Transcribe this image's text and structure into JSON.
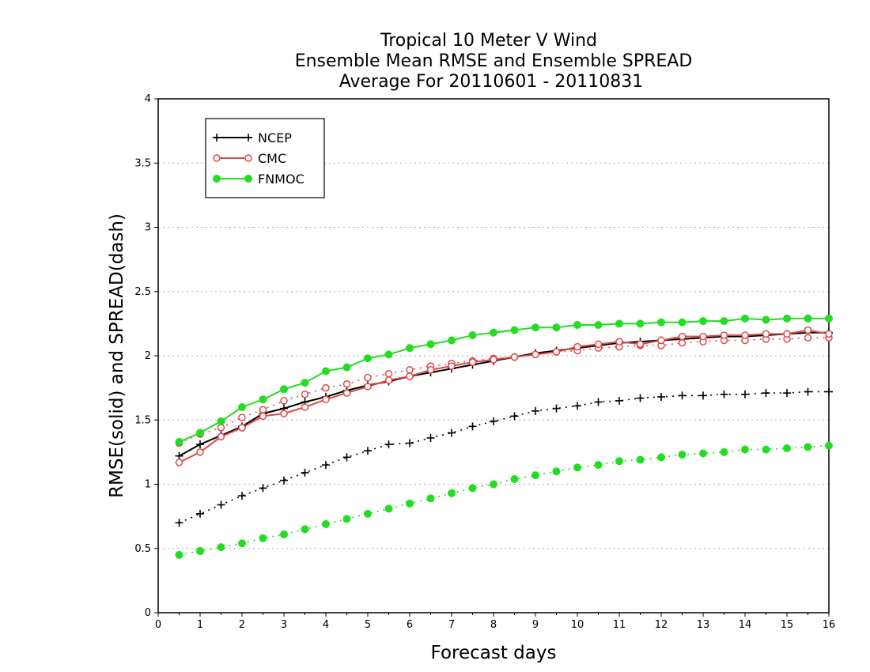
{
  "chart_data": {
    "type": "line",
    "title_lines": [
      "Tropical 10 Meter V Wind",
      "Ensemble Mean RMSE and Ensemble SPREAD",
      "Average For 20110601 - 20110831"
    ],
    "xlabel": "Forecast days",
    "ylabel": "RMSE(solid) and SPREAD(dash)",
    "xlim": [
      0,
      16
    ],
    "ylim": [
      0,
      4
    ],
    "x_ticks": [
      "0",
      "1",
      "2",
      "3",
      "4",
      "5",
      "6",
      "7",
      "8",
      "9",
      "10",
      "11",
      "12",
      "13",
      "14",
      "15",
      "16"
    ],
    "y_ticks": [
      "0",
      "0.5",
      "1",
      "1.5",
      "2",
      "2.5",
      "3",
      "3.5",
      "4"
    ],
    "y_tick_values": [
      0,
      0.5,
      1,
      1.5,
      2,
      2.5,
      3,
      3.5,
      4
    ],
    "grid": "horizontal dotted",
    "legend_position": "top-left",
    "x": [
      0.5,
      1,
      1.5,
      2,
      2.5,
      3,
      3.5,
      4,
      4.5,
      5,
      5.5,
      6,
      6.5,
      7,
      7.5,
      8,
      8.5,
      9,
      9.5,
      10,
      10.5,
      11,
      11.5,
      12,
      12.5,
      13,
      13.5,
      14,
      14.5,
      15,
      15.5,
      16
    ],
    "series": [
      {
        "name": "NCEP",
        "color": "#000000",
        "marker": "plus",
        "rmse": [
          1.22,
          1.31,
          1.38,
          1.45,
          1.55,
          1.59,
          1.64,
          1.68,
          1.73,
          1.77,
          1.8,
          1.84,
          1.87,
          1.9,
          1.93,
          1.96,
          1.99,
          2.02,
          2.04,
          2.06,
          2.08,
          2.1,
          2.11,
          2.12,
          2.13,
          2.14,
          2.15,
          2.15,
          2.16,
          2.17,
          2.18,
          2.18
        ],
        "spread": [
          0.7,
          0.77,
          0.84,
          0.91,
          0.97,
          1.03,
          1.09,
          1.15,
          1.21,
          1.26,
          1.31,
          1.32,
          1.36,
          1.4,
          1.45,
          1.49,
          1.53,
          1.57,
          1.59,
          1.61,
          1.64,
          1.65,
          1.67,
          1.68,
          1.69,
          1.69,
          1.7,
          1.7,
          1.71,
          1.71,
          1.72,
          1.72
        ]
      },
      {
        "name": "CMC",
        "color": "#e04a4a",
        "marker": "open-circle",
        "rmse": [
          1.17,
          1.25,
          1.37,
          1.44,
          1.53,
          1.55,
          1.6,
          1.66,
          1.71,
          1.76,
          1.81,
          1.84,
          1.89,
          1.92,
          1.95,
          1.97,
          1.99,
          2.01,
          2.03,
          2.07,
          2.09,
          2.11,
          2.09,
          2.12,
          2.15,
          2.15,
          2.16,
          2.16,
          2.17,
          2.17,
          2.2,
          2.17
        ],
        "spread": [
          1.32,
          1.39,
          1.44,
          1.52,
          1.58,
          1.65,
          1.7,
          1.75,
          1.78,
          1.83,
          1.86,
          1.89,
          1.92,
          1.94,
          1.96,
          1.98,
          1.99,
          2.01,
          2.03,
          2.04,
          2.06,
          2.07,
          2.08,
          2.08,
          2.1,
          2.11,
          2.12,
          2.12,
          2.13,
          2.13,
          2.14,
          2.14
        ]
      },
      {
        "name": "FNMOC",
        "color": "#22dd22",
        "marker": "filled-circle",
        "rmse": [
          1.33,
          1.4,
          1.49,
          1.6,
          1.66,
          1.74,
          1.79,
          1.88,
          1.91,
          1.98,
          2.01,
          2.06,
          2.09,
          2.12,
          2.16,
          2.18,
          2.2,
          2.22,
          2.22,
          2.24,
          2.24,
          2.25,
          2.25,
          2.26,
          2.26,
          2.27,
          2.27,
          2.29,
          2.28,
          2.29,
          2.29,
          2.29
        ],
        "spread": [
          0.45,
          0.48,
          0.51,
          0.54,
          0.58,
          0.61,
          0.65,
          0.69,
          0.73,
          0.77,
          0.81,
          0.85,
          0.89,
          0.93,
          0.97,
          1.0,
          1.04,
          1.07,
          1.1,
          1.13,
          1.15,
          1.18,
          1.19,
          1.21,
          1.23,
          1.24,
          1.25,
          1.27,
          1.27,
          1.28,
          1.29,
          1.3
        ]
      }
    ]
  }
}
